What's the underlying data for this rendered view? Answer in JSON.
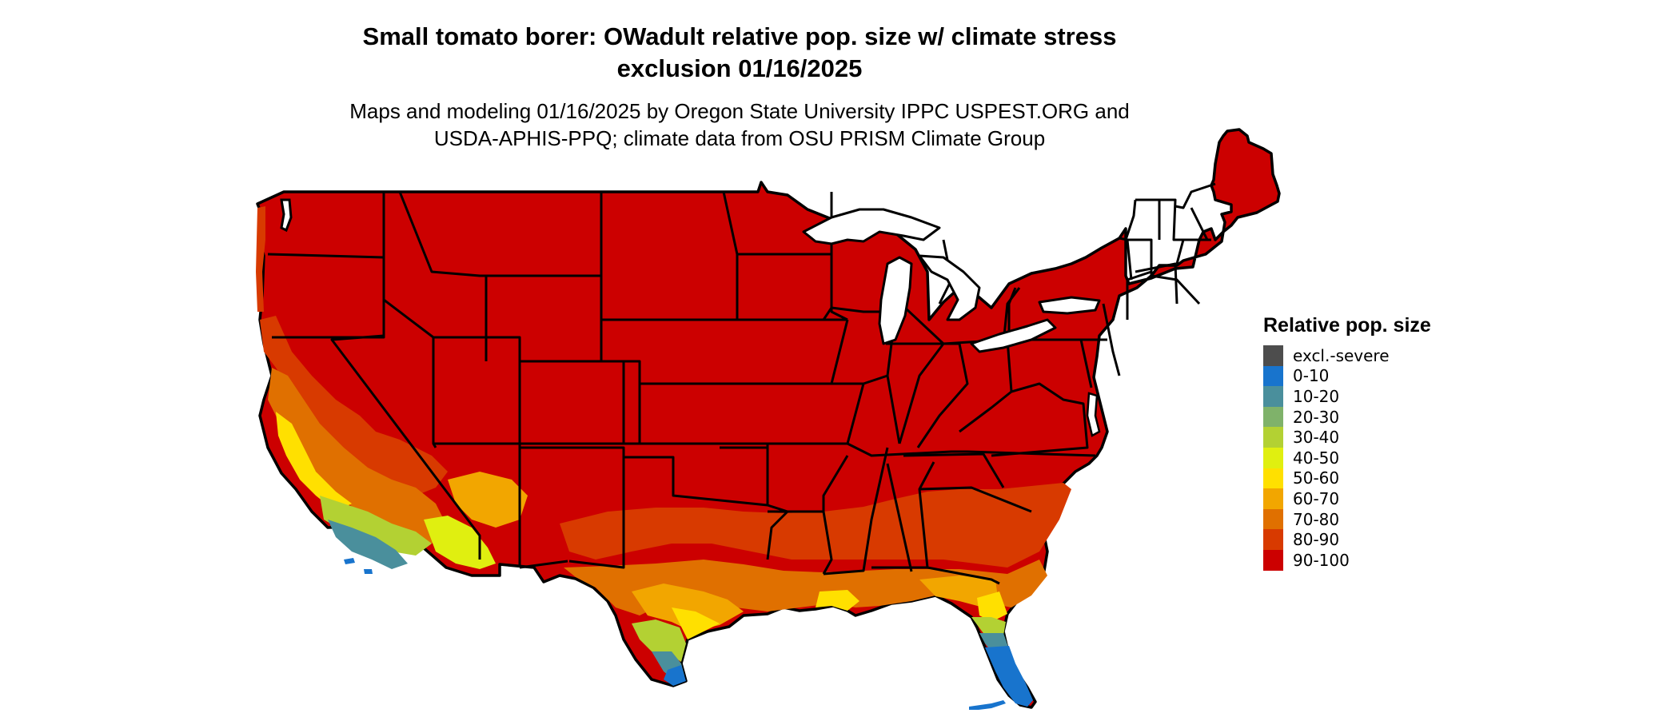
{
  "title_line1": "Small tomato borer: OWadult relative pop. size w/ climate stress",
  "title_line2": "exclusion 01/16/2025",
  "subtitle_line1": "Maps and modeling 01/16/2025 by Oregon State University IPPC USPEST.ORG and",
  "subtitle_line2": "USDA-APHIS-PPQ; climate data from OSU PRISM Climate Group",
  "legend": {
    "title": "Relative pop. size",
    "items": [
      {
        "label": "excl.-severe",
        "color": "#4d4d4d"
      },
      {
        "label": "0-10",
        "color": "#1874cd"
      },
      {
        "label": "10-20",
        "color": "#4a8f9c"
      },
      {
        "label": "20-30",
        "color": "#7fb26a"
      },
      {
        "label": "30-40",
        "color": "#b3d133"
      },
      {
        "label": "40-50",
        "color": "#e0ef10"
      },
      {
        "label": "50-60",
        "color": "#ffe000"
      },
      {
        "label": "60-70",
        "color": "#f2a600"
      },
      {
        "label": "70-80",
        "color": "#e07000"
      },
      {
        "label": "80-90",
        "color": "#d83a00"
      },
      {
        "label": "90-100",
        "color": "#cc0000"
      }
    ]
  }
}
